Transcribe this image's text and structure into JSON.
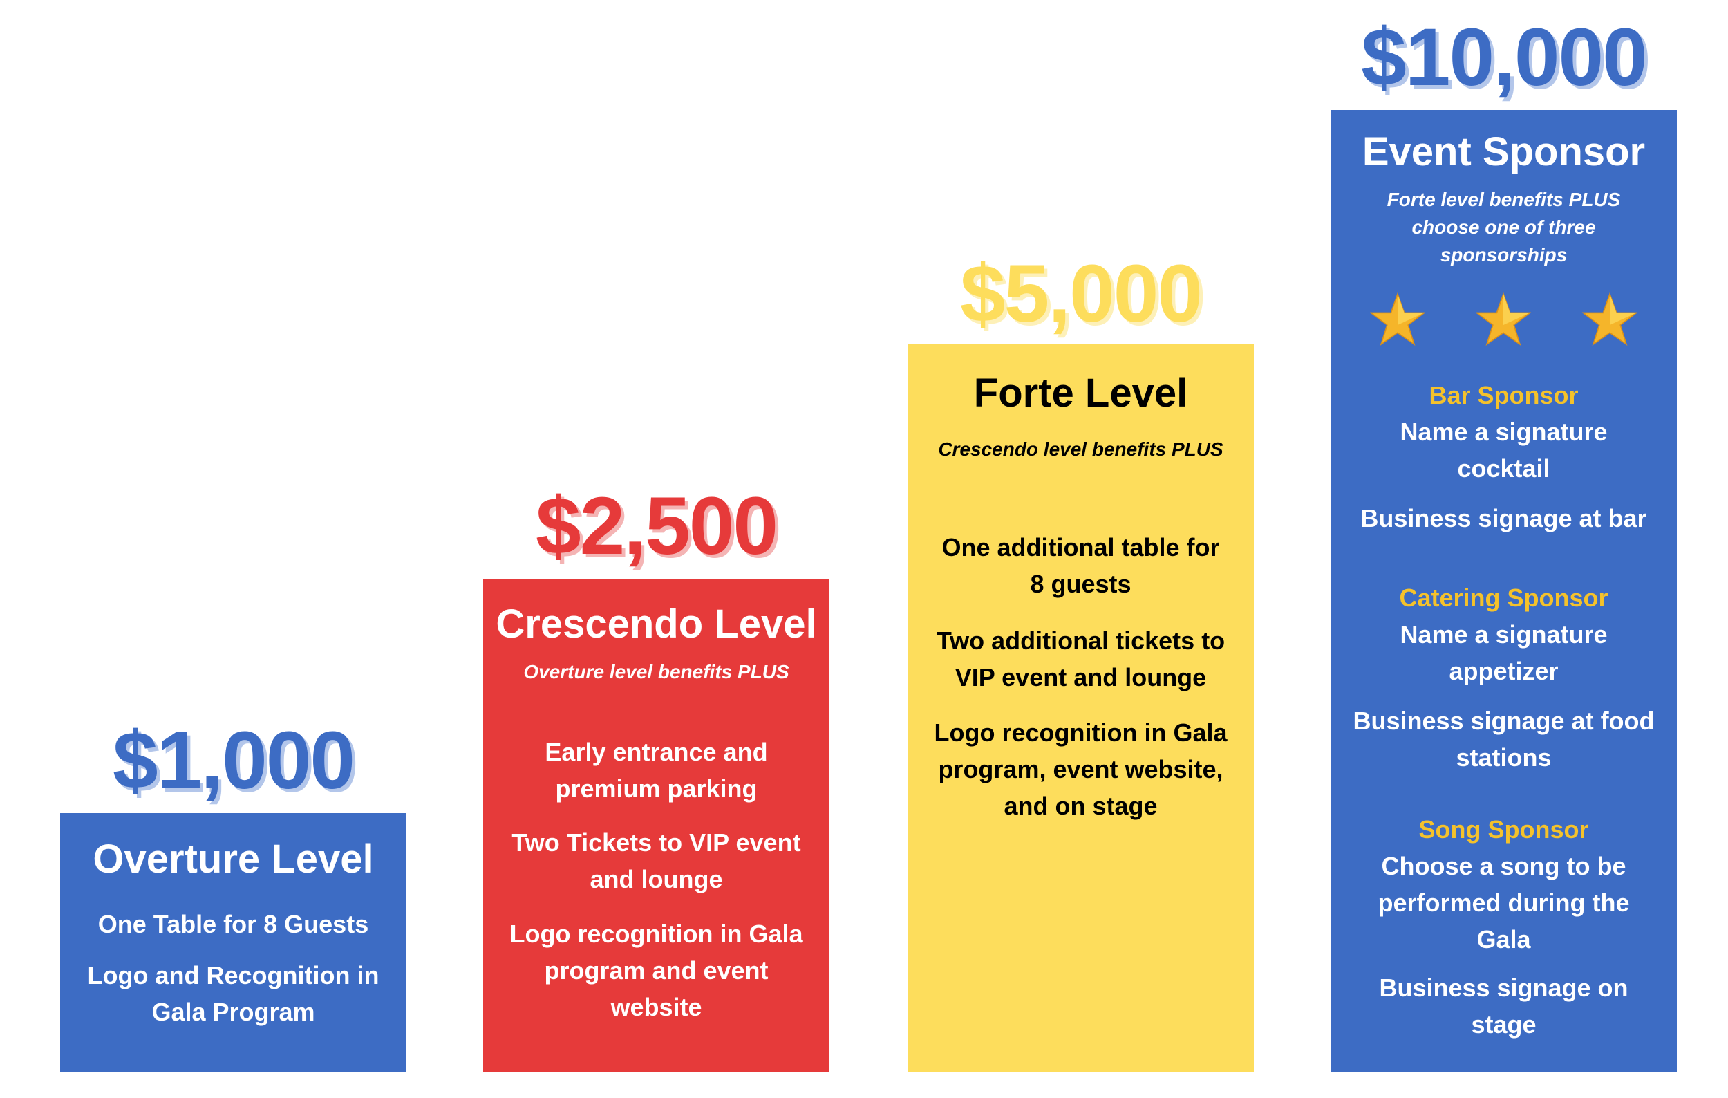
{
  "colors": {
    "blue": "#3d6cc4",
    "red": "#e63a3a",
    "yellow": "#fddd5c",
    "gold": "#f5c22b",
    "white": "#ffffff",
    "black": "#000000"
  },
  "tiers": [
    {
      "price": "$1,000",
      "title": "Overture Level",
      "items": [
        "One Table for 8 Guests",
        "Logo and Recognition in\nGala Program"
      ]
    },
    {
      "price": "$2,500",
      "title": "Crescendo Level",
      "subtitle": "Overture level benefits PLUS",
      "items": [
        "Early entrance and\npremium parking",
        "Two Tickets to VIP event\nand lounge",
        "Logo recognition in Gala\nprogram and event\nwebsite"
      ]
    },
    {
      "price": "$5,000",
      "title": "Forte Level",
      "subtitle": "Crescendo level benefits PLUS",
      "items": [
        "One additional table for\n8 guests",
        "Two additional tickets to\nVIP event and lounge",
        "Logo recognition in Gala\nprogram, event website,\nand on stage"
      ]
    },
    {
      "price": "$10,000",
      "title": "Event Sponsor",
      "subtitle": "Forte level benefits PLUS\nchoose one of three\nsponsorships",
      "stars": [
        "star-icon",
        "star-icon",
        "star-icon"
      ],
      "options": [
        {
          "name": "Bar Sponsor",
          "items": [
            "Name a signature\ncocktail",
            "Business signage at bar"
          ]
        },
        {
          "name": "Catering Sponsor",
          "items": [
            "Name a signature\nappetizer",
            "Business signage at food\nstations"
          ]
        },
        {
          "name": "Song Sponsor",
          "items": [
            "Choose a song to be\nperformed during the\nGala",
            "Business signage on\nstage"
          ]
        }
      ]
    }
  ]
}
